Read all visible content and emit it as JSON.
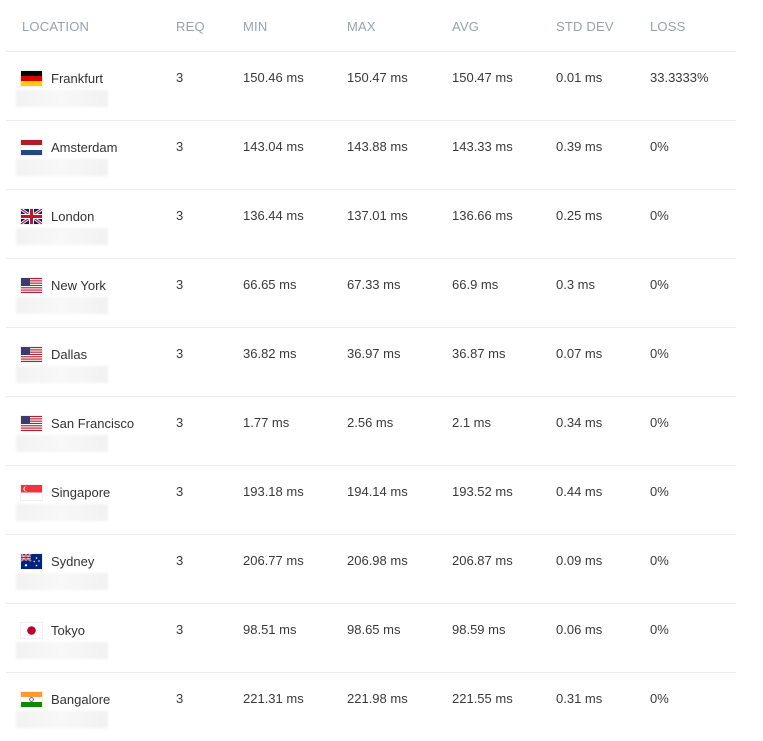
{
  "headers": {
    "location": "LOCATION",
    "req": "REQ",
    "min": "MIN",
    "max": "MAX",
    "avg": "AVG",
    "std_dev": "STD DEV",
    "loss": "LOSS"
  },
  "rows": [
    {
      "location": "Frankfurt",
      "flag": "germany-flag-icon",
      "req": "3",
      "min": "150.46 ms",
      "max": "150.47 ms",
      "avg": "150.47 ms",
      "std_dev": "0.01 ms",
      "loss": "33.3333%"
    },
    {
      "location": "Amsterdam",
      "flag": "netherlands-flag-icon",
      "req": "3",
      "min": "143.04 ms",
      "max": "143.88 ms",
      "avg": "143.33 ms",
      "std_dev": "0.39 ms",
      "loss": "0%"
    },
    {
      "location": "London",
      "flag": "uk-flag-icon",
      "req": "3",
      "min": "136.44 ms",
      "max": "137.01 ms",
      "avg": "136.66 ms",
      "std_dev": "0.25 ms",
      "loss": "0%"
    },
    {
      "location": "New York",
      "flag": "usa-flag-icon",
      "req": "3",
      "min": "66.65 ms",
      "max": "67.33 ms",
      "avg": "66.9 ms",
      "std_dev": "0.3 ms",
      "loss": "0%"
    },
    {
      "location": "Dallas",
      "flag": "usa-flag-icon",
      "req": "3",
      "min": "36.82 ms",
      "max": "36.97 ms",
      "avg": "36.87 ms",
      "std_dev": "0.07 ms",
      "loss": "0%"
    },
    {
      "location": "San Francisco",
      "flag": "usa-flag-icon",
      "req": "3",
      "min": "1.77 ms",
      "max": "2.56 ms",
      "avg": "2.1 ms",
      "std_dev": "0.34 ms",
      "loss": "0%"
    },
    {
      "location": "Singapore",
      "flag": "singapore-flag-icon",
      "req": "3",
      "min": "193.18 ms",
      "max": "194.14 ms",
      "avg": "193.52 ms",
      "std_dev": "0.44 ms",
      "loss": "0%"
    },
    {
      "location": "Sydney",
      "flag": "australia-flag-icon",
      "req": "3",
      "min": "206.77 ms",
      "max": "206.98 ms",
      "avg": "206.87 ms",
      "std_dev": "0.09 ms",
      "loss": "0%"
    },
    {
      "location": "Tokyo",
      "flag": "japan-flag-icon",
      "req": "3",
      "min": "98.51 ms",
      "max": "98.65 ms",
      "avg": "98.59 ms",
      "std_dev": "0.06 ms",
      "loss": "0%"
    },
    {
      "location": "Bangalore",
      "flag": "india-flag-icon",
      "req": "3",
      "min": "221.31 ms",
      "max": "221.98 ms",
      "avg": "221.55 ms",
      "std_dev": "0.31 ms",
      "loss": "0%"
    }
  ]
}
